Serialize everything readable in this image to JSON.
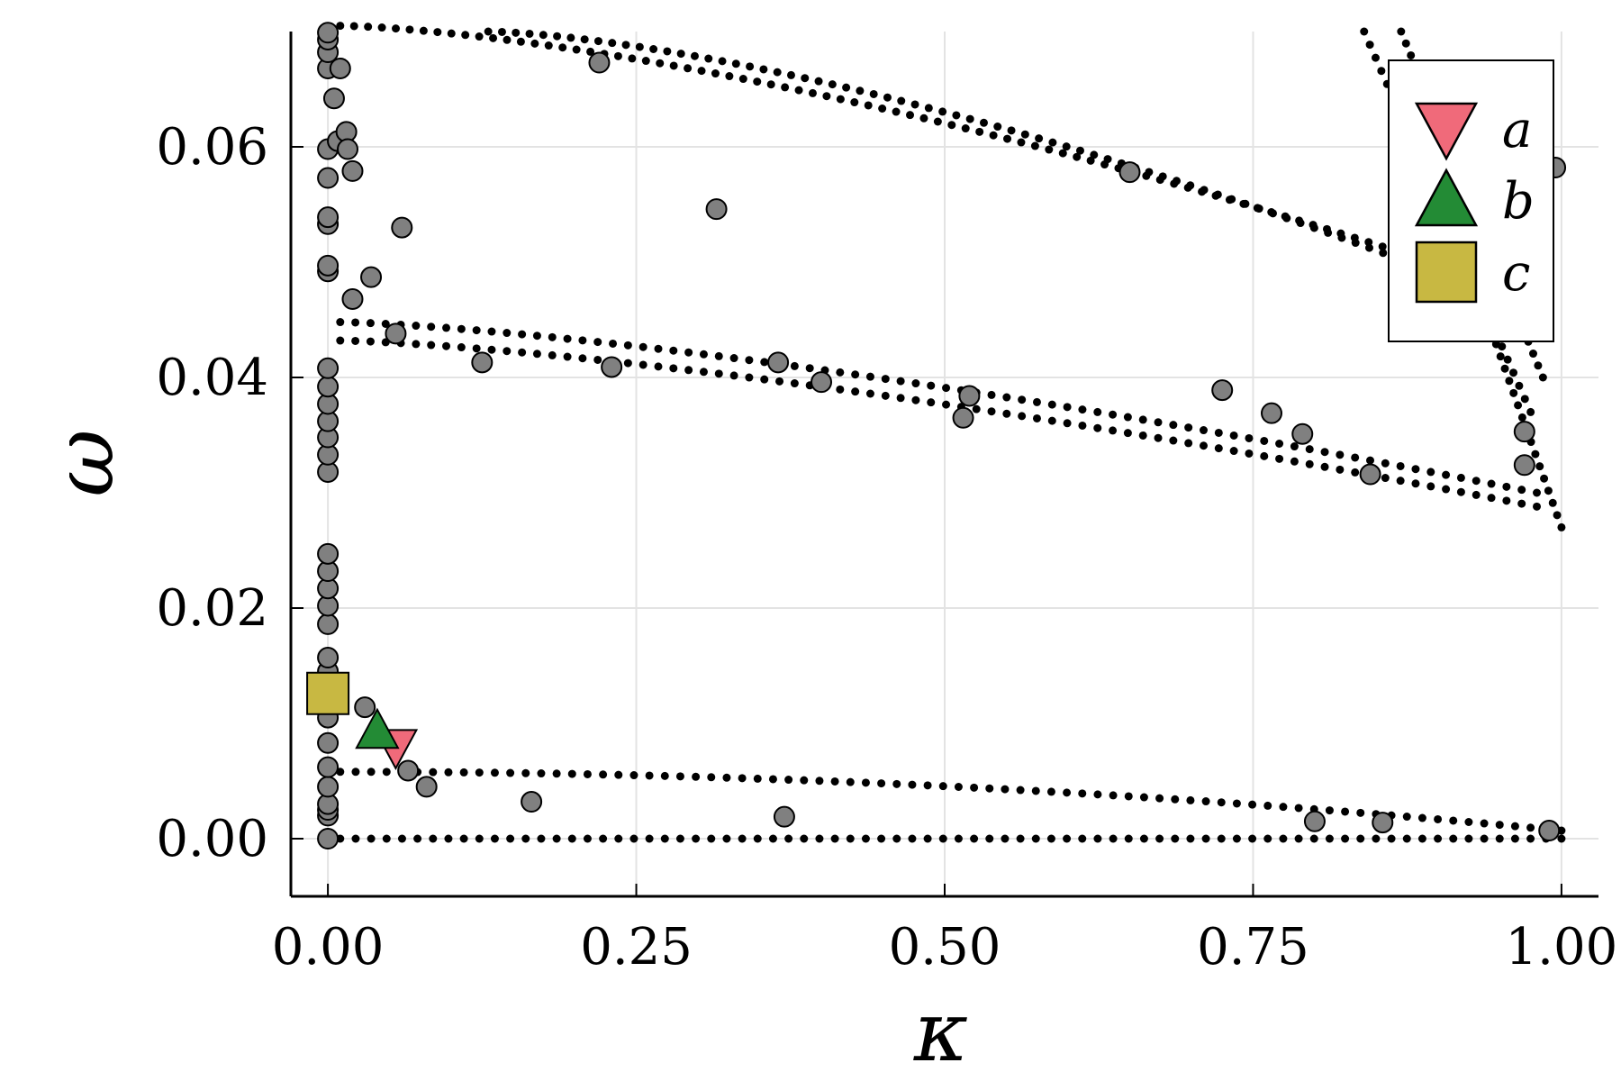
{
  "chart_data": {
    "type": "scatter",
    "title": "",
    "xlabel": "κ",
    "ylabel": "ω",
    "xlim": [
      -0.03,
      1.03
    ],
    "ylim": [
      -0.005,
      0.07
    ],
    "grid": true,
    "legend_position": "top-right",
    "x_ticks": [
      {
        "value": 0.0,
        "label": "0.00"
      },
      {
        "value": 0.25,
        "label": "0.25"
      },
      {
        "value": 0.5,
        "label": "0.50"
      },
      {
        "value": 0.75,
        "label": "0.75"
      },
      {
        "value": 1.0,
        "label": "1.00"
      }
    ],
    "y_ticks": [
      {
        "value": 0.0,
        "label": "0.00"
      },
      {
        "value": 0.02,
        "label": "0.02"
      },
      {
        "value": 0.04,
        "label": "0.04"
      },
      {
        "value": 0.06,
        "label": "0.06"
      }
    ],
    "bands": [
      {
        "name": "band-zero",
        "x_start": 0.01,
        "x_end": 1.0,
        "y_start": 0.0,
        "y_end": 0.0,
        "curve": 1.0,
        "n": 80
      },
      {
        "name": "band-low",
        "x_start": 0.01,
        "x_end": 1.0,
        "y_start": 0.0058,
        "y_end": 0.0007,
        "curve": 2.0,
        "n": 80
      },
      {
        "name": "band-mid-upper",
        "x_start": 0.01,
        "x_end": 0.98,
        "y_start": 0.0448,
        "y_end": 0.03,
        "curve": 1.4,
        "n": 80
      },
      {
        "name": "band-mid-lower",
        "x_start": 0.01,
        "x_end": 0.98,
        "y_start": 0.0432,
        "y_end": 0.0288,
        "curve": 1.4,
        "n": 80
      },
      {
        "name": "band-top-upper",
        "x_start": 0.01,
        "x_end": 0.9,
        "y_start": 0.0705,
        "y_end": 0.0498,
        "curve": 1.5,
        "n": 80
      },
      {
        "name": "band-top-lower",
        "x_start": 0.13,
        "x_end": 0.9,
        "y_start": 0.07,
        "y_end": 0.049,
        "curve": 1.5,
        "n": 70
      },
      {
        "name": "band-right-curl-a",
        "x_start": 0.84,
        "x_end": 0.975,
        "y_start": 0.07,
        "y_end": 0.037,
        "curve": 1.0,
        "n": 30
      },
      {
        "name": "band-right-curl-b",
        "x_start": 0.87,
        "x_end": 0.985,
        "y_start": 0.07,
        "y_end": 0.04,
        "curve": 1.0,
        "n": 30
      },
      {
        "name": "band-right-drop",
        "x_start": 0.94,
        "x_end": 1.0,
        "y_start": 0.045,
        "y_end": 0.027,
        "curve": 1.0,
        "n": 18
      }
    ],
    "gray_points": [
      [
        0.0,
        0.0
      ],
      [
        0.0,
        0.002
      ],
      [
        0.0,
        0.0025
      ],
      [
        0.0,
        0.003
      ],
      [
        0.0,
        0.0045
      ],
      [
        0.0,
        0.0062
      ],
      [
        0.0,
        0.0083
      ],
      [
        0.0,
        0.0105
      ],
      [
        0.0,
        0.0145
      ],
      [
        0.0,
        0.0157
      ],
      [
        0.0,
        0.0186
      ],
      [
        0.0,
        0.0202
      ],
      [
        0.0,
        0.0217
      ],
      [
        0.0,
        0.0232
      ],
      [
        0.0,
        0.0247
      ],
      [
        0.0,
        0.0318
      ],
      [
        0.0,
        0.0333
      ],
      [
        0.0,
        0.0348
      ],
      [
        0.0,
        0.0362
      ],
      [
        0.0,
        0.0377
      ],
      [
        0.0,
        0.0392
      ],
      [
        0.0,
        0.0408
      ],
      [
        0.0,
        0.0492
      ],
      [
        0.0,
        0.0497
      ],
      [
        0.0,
        0.0533
      ],
      [
        0.0,
        0.0539
      ],
      [
        0.0,
        0.0573
      ],
      [
        0.0,
        0.0598
      ],
      [
        0.0,
        0.0668
      ],
      [
        0.0,
        0.0682
      ],
      [
        0.0,
        0.0693
      ],
      [
        0.0,
        0.0699
      ],
      [
        0.005,
        0.0642
      ],
      [
        0.008,
        0.0605
      ],
      [
        0.01,
        0.0668
      ],
      [
        0.015,
        0.0613
      ],
      [
        0.016,
        0.0598
      ],
      [
        0.02,
        0.0579
      ],
      [
        0.02,
        0.0468
      ],
      [
        0.03,
        0.0114
      ],
      [
        0.035,
        0.0487
      ],
      [
        0.055,
        0.0438
      ],
      [
        0.06,
        0.053
      ],
      [
        0.065,
        0.0059
      ],
      [
        0.08,
        0.0045
      ],
      [
        0.125,
        0.0413
      ],
      [
        0.165,
        0.0032
      ],
      [
        0.22,
        0.0673
      ],
      [
        0.23,
        0.0409
      ],
      [
        0.315,
        0.0546
      ],
      [
        0.365,
        0.0413
      ],
      [
        0.37,
        0.0019
      ],
      [
        0.4,
        0.0396
      ],
      [
        0.515,
        0.0365
      ],
      [
        0.52,
        0.0384
      ],
      [
        0.65,
        0.0578
      ],
      [
        0.725,
        0.0389
      ],
      [
        0.765,
        0.0369
      ],
      [
        0.79,
        0.0351
      ],
      [
        0.8,
        0.0015
      ],
      [
        0.845,
        0.0316
      ],
      [
        0.855,
        0.0014
      ],
      [
        0.97,
        0.0353
      ],
      [
        0.97,
        0.0324
      ],
      [
        0.99,
        0.0007
      ],
      [
        0.995,
        0.0582
      ]
    ],
    "highlight_points": [
      {
        "label": "a",
        "marker": "triangle-down",
        "color": "#f06a7a",
        "x": 0.055,
        "y": 0.0079
      },
      {
        "label": "b",
        "marker": "triangle-up",
        "color": "#238b35",
        "x": 0.04,
        "y": 0.0094
      },
      {
        "label": "c",
        "marker": "square",
        "color": "#c8b842",
        "x": 0.0,
        "y": 0.0126
      }
    ],
    "legend": [
      {
        "label": "a",
        "marker": "triangle-down",
        "color": "#f06a7a"
      },
      {
        "label": "b",
        "marker": "triangle-up",
        "color": "#238b35"
      },
      {
        "label": "c",
        "marker": "square",
        "color": "#c8b842"
      }
    ],
    "colors": {
      "gray_point_fill": "#808080",
      "band_dots": "#000000",
      "grid": "#e3e3e3",
      "axis": "#000000"
    }
  }
}
